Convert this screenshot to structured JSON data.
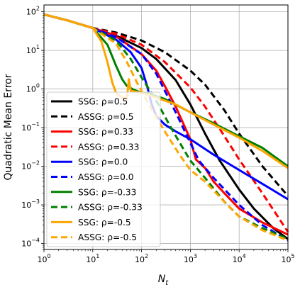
{
  "chart_data": {
    "type": "line",
    "title": "",
    "xlabel": "N",
    "xlabel_sub": "t",
    "ylabel": "Quadratic Mean Error",
    "xscale": "log",
    "yscale": "log",
    "xlim": [
      1,
      100000
    ],
    "ylim": [
      7e-05,
      150
    ],
    "grid": true,
    "legend_position": "center-left",
    "x_ticks": [
      {
        "value": 1,
        "base": "10",
        "exp": "0"
      },
      {
        "value": 10,
        "base": "10",
        "exp": "1"
      },
      {
        "value": 100,
        "base": "10",
        "exp": "2"
      },
      {
        "value": 1000,
        "base": "10",
        "exp": "3"
      },
      {
        "value": 10000,
        "base": "10",
        "exp": "4"
      },
      {
        "value": 100000,
        "base": "10",
        "exp": "5"
      }
    ],
    "y_ticks": [
      {
        "value": 0.0001,
        "base": "10",
        "exp": "−4"
      },
      {
        "value": 0.001,
        "base": "10",
        "exp": "−3"
      },
      {
        "value": 0.01,
        "base": "10",
        "exp": "−2"
      },
      {
        "value": 0.1,
        "base": "10",
        "exp": "−1"
      },
      {
        "value": 1,
        "base": "10",
        "exp": "0"
      },
      {
        "value": 10,
        "base": "10",
        "exp": "1"
      },
      {
        "value": 100,
        "base": "10",
        "exp": "2"
      }
    ],
    "series": [
      {
        "name": "SSG: ρ=0.5",
        "color": "#000000",
        "dash": "solid",
        "points": [
          [
            1,
            85
          ],
          [
            3,
            60
          ],
          [
            10,
            38
          ],
          [
            30,
            24
          ],
          [
            100,
            11.5
          ],
          [
            200,
            6
          ],
          [
            500,
            1.7
          ],
          [
            1000,
            0.4
          ],
          [
            2000,
            0.07
          ],
          [
            4000,
            0.014
          ],
          [
            10000,
            0.0025
          ],
          [
            20000,
            0.0008
          ],
          [
            50000,
            0.00025
          ],
          [
            100000,
            0.00013
          ]
        ]
      },
      {
        "name": "ASSG: ρ=0.5",
        "color": "#000000",
        "dash": "dashed",
        "points": [
          [
            1,
            85
          ],
          [
            3,
            60
          ],
          [
            10,
            38
          ],
          [
            30,
            29
          ],
          [
            100,
            18
          ],
          [
            300,
            9
          ],
          [
            1000,
            3
          ],
          [
            2000,
            1.3
          ],
          [
            5000,
            0.28
          ],
          [
            10000,
            0.07
          ],
          [
            30000,
            0.01
          ],
          [
            100000,
            0.0017
          ]
        ]
      },
      {
        "name": "SSG: ρ=0.33",
        "color": "#ff0000",
        "dash": "solid",
        "points": [
          [
            1,
            85
          ],
          [
            3,
            60
          ],
          [
            10,
            38
          ],
          [
            30,
            23
          ],
          [
            100,
            8
          ],
          [
            200,
            3
          ],
          [
            300,
            1.2
          ],
          [
            500,
            0.35
          ],
          [
            1000,
            0.05
          ],
          [
            1300,
            0.015
          ],
          [
            2000,
            0.009
          ],
          [
            3000,
            0.004
          ],
          [
            5000,
            0.002
          ],
          [
            10000,
            0.0008
          ],
          [
            30000,
            0.00035
          ],
          [
            100000,
            0.00017
          ]
        ]
      },
      {
        "name": "ASSG: ρ=0.33",
        "color": "#ff0000",
        "dash": "dashed",
        "points": [
          [
            1,
            85
          ],
          [
            3,
            60
          ],
          [
            10,
            38
          ],
          [
            30,
            27
          ],
          [
            100,
            14
          ],
          [
            300,
            5
          ],
          [
            1000,
            1.1
          ],
          [
            2000,
            0.35
          ],
          [
            5000,
            0.06
          ],
          [
            10000,
            0.015
          ],
          [
            30000,
            0.002
          ],
          [
            100000,
            0.0002
          ]
        ]
      },
      {
        "name": "SSG: ρ=0.0",
        "color": "#0000ff",
        "dash": "solid",
        "points": [
          [
            1,
            85
          ],
          [
            3,
            60
          ],
          [
            10,
            38
          ],
          [
            30,
            19
          ],
          [
            60,
            9
          ],
          [
            100,
            3.5
          ],
          [
            130,
            1.2
          ],
          [
            160,
            0.42
          ],
          [
            200,
            0.2
          ],
          [
            300,
            0.12
          ],
          [
            500,
            0.08
          ],
          [
            1000,
            0.05
          ],
          [
            3000,
            0.02
          ],
          [
            10000,
            0.008
          ],
          [
            30000,
            0.0035
          ],
          [
            100000,
            0.0014
          ]
        ]
      },
      {
        "name": "ASSG: ρ=0.0",
        "color": "#0000ff",
        "dash": "dashed",
        "points": [
          [
            1,
            85
          ],
          [
            3,
            60
          ],
          [
            10,
            38
          ],
          [
            30,
            22
          ],
          [
            100,
            8
          ],
          [
            200,
            2.5
          ],
          [
            300,
            0.9
          ],
          [
            500,
            0.25
          ],
          [
            1000,
            0.04
          ],
          [
            1500,
            0.014
          ],
          [
            3000,
            0.005
          ],
          [
            10000,
            0.001
          ],
          [
            30000,
            0.0003
          ],
          [
            100000,
            0.00012
          ]
        ]
      },
      {
        "name": "SSG: ρ=-0.33",
        "color": "#008000",
        "dash": "solid",
        "points": [
          [
            1,
            85
          ],
          [
            3,
            60
          ],
          [
            10,
            38
          ],
          [
            20,
            14
          ],
          [
            30,
            4
          ],
          [
            40,
            1.8
          ],
          [
            50,
            1.2
          ],
          [
            70,
            0.95
          ],
          [
            100,
            0.8
          ],
          [
            150,
            0.75
          ],
          [
            300,
            0.55
          ],
          [
            1000,
            0.25
          ],
          [
            3000,
            0.13
          ],
          [
            10000,
            0.06
          ],
          [
            30000,
            0.03
          ],
          [
            100000,
            0.01
          ]
        ]
      },
      {
        "name": "ASSG: ρ=-0.33",
        "color": "#008000",
        "dash": "dashed",
        "points": [
          [
            1,
            85
          ],
          [
            3,
            60
          ],
          [
            10,
            38
          ],
          [
            30,
            18
          ],
          [
            60,
            6
          ],
          [
            100,
            2
          ],
          [
            200,
            0.5
          ],
          [
            400,
            0.1
          ],
          [
            700,
            0.03
          ],
          [
            1000,
            0.014
          ],
          [
            2000,
            0.005
          ],
          [
            5000,
            0.0012
          ],
          [
            10000,
            0.0005
          ],
          [
            30000,
            0.00025
          ],
          [
            100000,
            0.00013
          ]
        ]
      },
      {
        "name": "SSG: ρ=-0.5",
        "color": "#ffa500",
        "dash": "solid",
        "points": [
          [
            1,
            85
          ],
          [
            3,
            60
          ],
          [
            10,
            38
          ],
          [
            15,
            17
          ],
          [
            20,
            5
          ],
          [
            25,
            1.5
          ],
          [
            30,
            0.8
          ],
          [
            40,
            0.6
          ],
          [
            50,
            0.55
          ],
          [
            55,
            1.8
          ],
          [
            60,
            0.9
          ],
          [
            100,
            0.8
          ],
          [
            200,
            0.6
          ],
          [
            500,
            0.4
          ],
          [
            1000,
            0.25
          ],
          [
            3000,
            0.12
          ],
          [
            10000,
            0.055
          ],
          [
            30000,
            0.025
          ],
          [
            100000,
            0.009
          ]
        ]
      },
      {
        "name": "ASSG: ρ=-0.5",
        "color": "#ffa500",
        "dash": "dashed",
        "points": [
          [
            1,
            85
          ],
          [
            3,
            60
          ],
          [
            10,
            38
          ],
          [
            30,
            15
          ],
          [
            50,
            5
          ],
          [
            80,
            1.5
          ],
          [
            150,
            0.35
          ],
          [
            300,
            0.08
          ],
          [
            600,
            0.02
          ],
          [
            1000,
            0.008
          ],
          [
            2000,
            0.004
          ],
          [
            5000,
            0.0012
          ],
          [
            10000,
            0.0005
          ],
          [
            30000,
            0.00022
          ],
          [
            100000,
            0.00012
          ]
        ]
      }
    ]
  }
}
